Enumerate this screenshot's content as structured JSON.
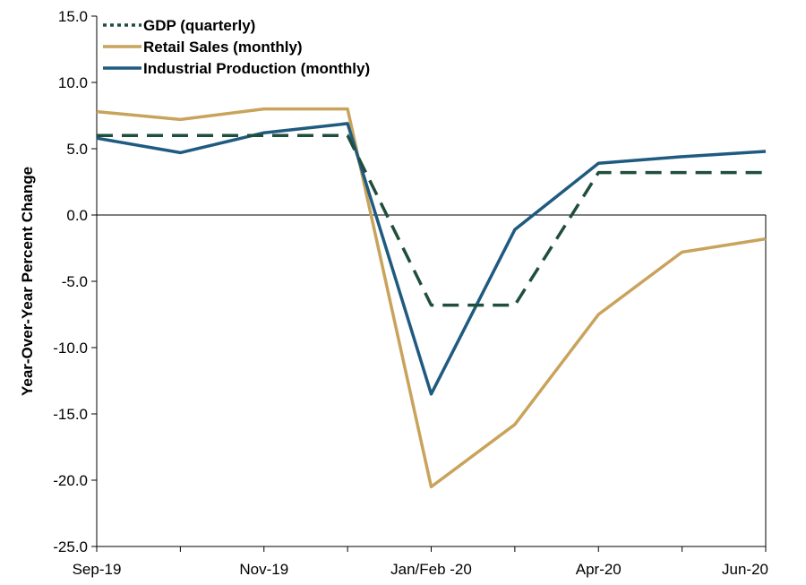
{
  "chart_data": {
    "type": "line",
    "title": "",
    "xlabel": "",
    "ylabel": "Year-Over-Year Percent Change",
    "ylim": [
      -25.0,
      15.0
    ],
    "y_ticks": [
      "15.0",
      "10.0",
      "5.0",
      "0.0",
      "-5.0",
      "-10.0",
      "-15.0",
      "-20.0",
      "-25.0"
    ],
    "y_tick_values": [
      15,
      10,
      5,
      0,
      -5,
      -10,
      -15,
      -20,
      -25
    ],
    "x_tick_labels": [
      "Sep-19",
      "Nov-19",
      "Jan/Feb -20",
      "Apr-20",
      "Jun-20"
    ],
    "x_tick_positions": [
      0,
      2,
      4,
      6,
      8
    ],
    "x_count": 9,
    "grid": false,
    "legend_position": "top-left",
    "series": [
      {
        "name": "GDP (quarterly)",
        "color": "#1f4e3d",
        "style": "dashed",
        "legend_style": "dotted",
        "values": [
          6.0,
          6.0,
          6.0,
          6.0,
          -6.8,
          -6.8,
          3.2,
          3.2,
          3.2
        ]
      },
      {
        "name": "Retail Sales (monthly)",
        "color": "#c9a35c",
        "style": "solid",
        "legend_style": "solid",
        "values": [
          7.8,
          7.2,
          8.0,
          8.0,
          -20.5,
          -15.8,
          -7.5,
          -2.8,
          -1.8
        ]
      },
      {
        "name": "Industrial Production (monthly)",
        "color": "#1f5a80",
        "style": "solid",
        "legend_style": "solid",
        "values": [
          5.8,
          4.7,
          6.2,
          6.9,
          -13.5,
          -1.1,
          3.9,
          4.4,
          4.8
        ]
      }
    ]
  }
}
